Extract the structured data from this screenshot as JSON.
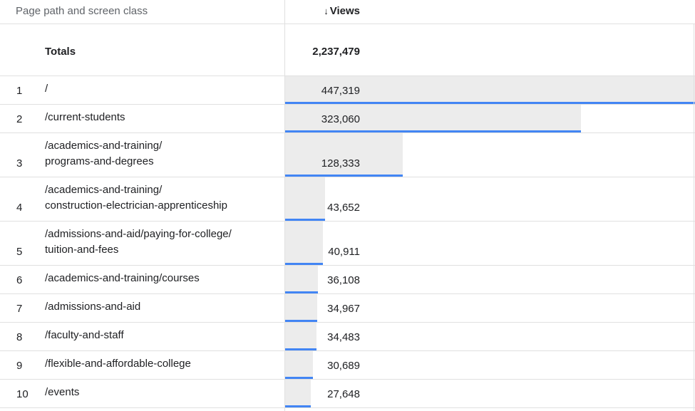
{
  "header": {
    "dimension_label": "Page path and screen class",
    "sort_icon_glyph": "↓",
    "metric_label": "Views"
  },
  "totals": {
    "label": "Totals",
    "value": "2,237,479"
  },
  "rows": [
    {
      "rank": "1",
      "path": "/",
      "value": "447,319",
      "views": 447319
    },
    {
      "rank": "2",
      "path": "/current-students",
      "value": "323,060",
      "views": 323060
    },
    {
      "rank": "3",
      "path": "/academics-and-training/\nprograms-and-degrees",
      "value": "128,333",
      "views": 128333
    },
    {
      "rank": "4",
      "path": "/academics-and-training/\nconstruction-electrician-apprenticeship",
      "value": "43,652",
      "views": 43652
    },
    {
      "rank": "5",
      "path": "/admissions-and-aid/paying-for-college/\ntuition-and-fees",
      "value": "40,911",
      "views": 40911
    },
    {
      "rank": "6",
      "path": "/academics-and-training/courses",
      "value": "36,108",
      "views": 36108
    },
    {
      "rank": "7",
      "path": "/admissions-and-aid",
      "value": "34,967",
      "views": 34967
    },
    {
      "rank": "8",
      "path": "/faculty-and-staff",
      "value": "34,483",
      "views": 34483
    },
    {
      "rank": "9",
      "path": "/flexible-and-affordable-college",
      "value": "30,689",
      "views": 30689
    },
    {
      "rank": "10",
      "path": "/events",
      "value": "27,648",
      "views": 27648
    }
  ],
  "colors": {
    "bar_fill": "#ececec",
    "bar_accent": "#4285f4"
  }
}
